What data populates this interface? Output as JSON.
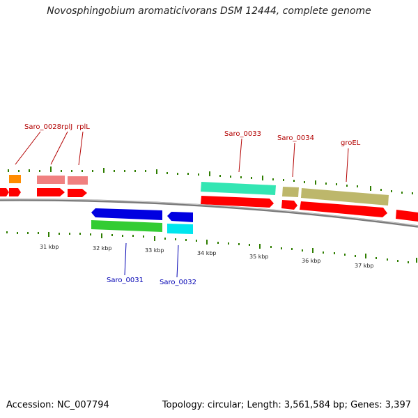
{
  "title": "Novosphingobium aromaticivorans DSM 12444, complete genome",
  "footer": {
    "accession": "Accession: NC_007794",
    "topology": "Topology: circular; Length: 3,561,584 bp; Genes: 3,397"
  },
  "colors": {
    "backbone": "#7a7a7a",
    "cds": "#ff0000",
    "tick": "#2e7d00",
    "fwd_label": "#b30000",
    "rev_label": "#0000b3"
  },
  "scale_labels": [
    "31 kbp",
    "32 kbp",
    "33 kbp",
    "34 kbp",
    "35 kbp",
    "36 kbp",
    "37 kbp"
  ],
  "gene_labels": {
    "forward": [
      "Saro_0028",
      "rplJ",
      "rplL",
      "Saro_0033",
      "Saro_0034",
      "groEL"
    ],
    "reverse": [
      "Saro_0031",
      "Saro_0032"
    ]
  }
}
